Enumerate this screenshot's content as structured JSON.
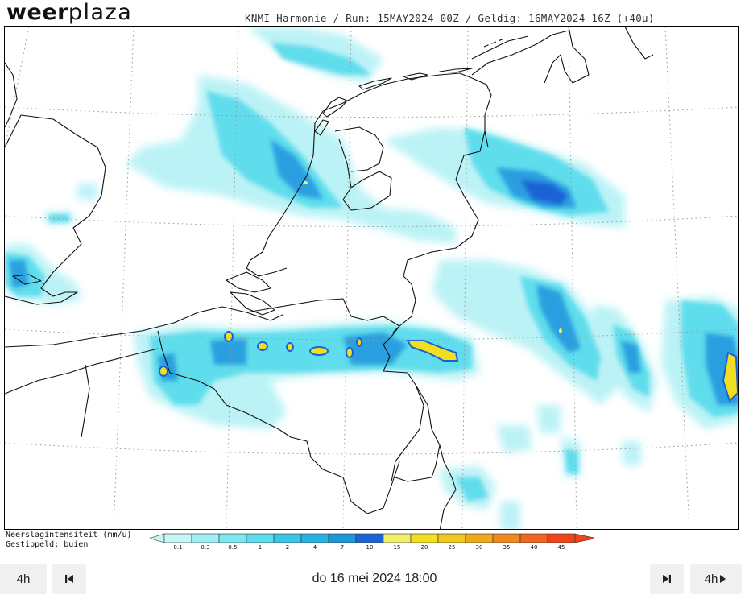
{
  "header": {
    "brand_part1": "weer",
    "brand_part2": "plaza",
    "run_info": "KNMI Harmonie / Run: 15MAY2024 00Z / Geldig: 16MAY2024 16Z (+40u)"
  },
  "legend": {
    "title": "Neerslagintensiteit (mm/u)",
    "subtitle": "Gestippeld: buien",
    "ticks": [
      "0.1",
      "0.3",
      "0.5",
      "1",
      "2",
      "4",
      "7",
      "10",
      "15",
      "20",
      "25",
      "30",
      "35",
      "40",
      "45"
    ],
    "colors": [
      "#c6f6f8",
      "#9ff0f4",
      "#7ee8f0",
      "#5cdcec",
      "#38c8e6",
      "#2ab0e0",
      "#1e96d8",
      "#1a62d6",
      "#f2ee6e",
      "#f2e020",
      "#f0c81e",
      "#f0a81e",
      "#f08820",
      "#f06620",
      "#f04418"
    ]
  },
  "controls": {
    "step_back_label": "4h",
    "step_forward_label": "4h",
    "current_time": "do 16 mei 2024 18:00",
    "first_icon": "skip-back-icon",
    "last_icon": "skip-forward-icon",
    "forward_icon": "play-right-icon"
  }
}
